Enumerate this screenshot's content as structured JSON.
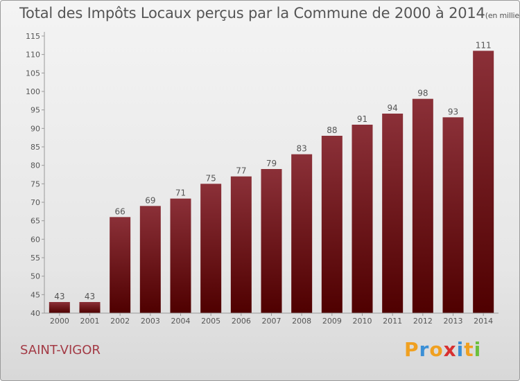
{
  "chart_data": {
    "type": "bar",
    "title": "Total des Impôts Locaux perçus par la Commune de 2000 à 2014",
    "title_unit": "(en milliers d'€)",
    "categories": [
      "2000",
      "2001",
      "2002",
      "2003",
      "2004",
      "2005",
      "2006",
      "2007",
      "2008",
      "2009",
      "2010",
      "2011",
      "2012",
      "2013",
      "2014"
    ],
    "values": [
      43,
      43,
      66,
      69,
      71,
      75,
      77,
      79,
      83,
      88,
      91,
      94,
      98,
      93,
      111
    ],
    "ylim": [
      40,
      115
    ],
    "yticks": [
      40,
      45,
      50,
      55,
      60,
      65,
      70,
      75,
      80,
      85,
      90,
      95,
      100,
      105,
      110,
      115
    ],
    "grid": false,
    "bar_color_top": "#8b3038",
    "bar_color_bottom": "#4f0000"
  },
  "commune": "SAINT-VIGOR",
  "logo": {
    "letters": [
      "P",
      "r",
      "o",
      "x",
      "i",
      "t",
      "i"
    ],
    "colors": [
      "#f0a020",
      "#3a8fd6",
      "#f0a020",
      "#d83030",
      "#3a8fd6",
      "#f0a020",
      "#6cbf3c"
    ]
  }
}
